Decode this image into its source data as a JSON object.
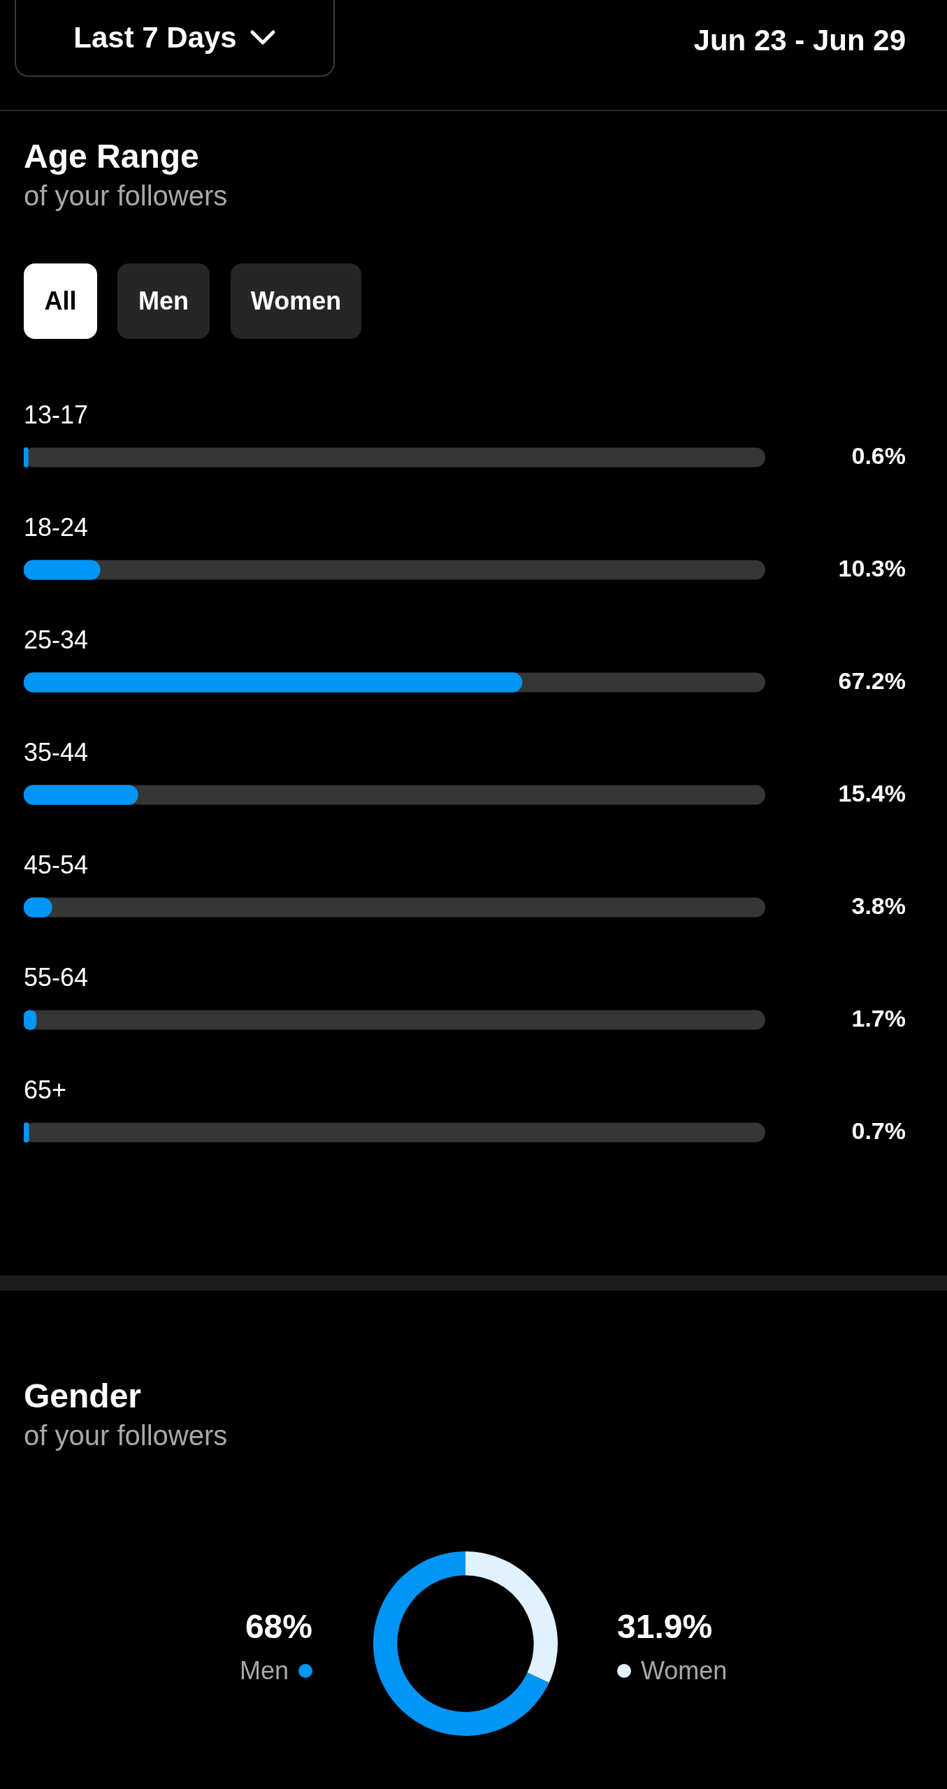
{
  "chart_data": [
    {
      "type": "bar",
      "orientation": "horizontal",
      "title": "Age Range",
      "subtitle": "of your followers",
      "annotations": [
        "Last 7 Days",
        "Jun 23 - Jun 29",
        "All",
        "Men",
        "Women"
      ],
      "categories": [
        "13-17",
        "18-24",
        "25-34",
        "35-44",
        "45-54",
        "55-64",
        "65+"
      ],
      "values": [
        0.6,
        10.3,
        67.2,
        15.4,
        3.8,
        1.7,
        0.7
      ],
      "value_labels": [
        "0.6%",
        "10.3%",
        "67.2%",
        "15.4%",
        "3.8%",
        "1.7%",
        "0.7%"
      ],
      "color": "#0095f6",
      "xlim": [
        0,
        100
      ],
      "tick_labels": false
    },
    {
      "type": "donut",
      "title": "Gender",
      "subtitle": "of your followers",
      "categories": [
        "Men",
        "Women"
      ],
      "values": [
        68,
        31.9
      ],
      "value_labels": [
        "68%",
        "31.9%"
      ],
      "colors": [
        "#0095f6",
        "#e0f1ff"
      ],
      "legend": "bottom"
    }
  ]
}
